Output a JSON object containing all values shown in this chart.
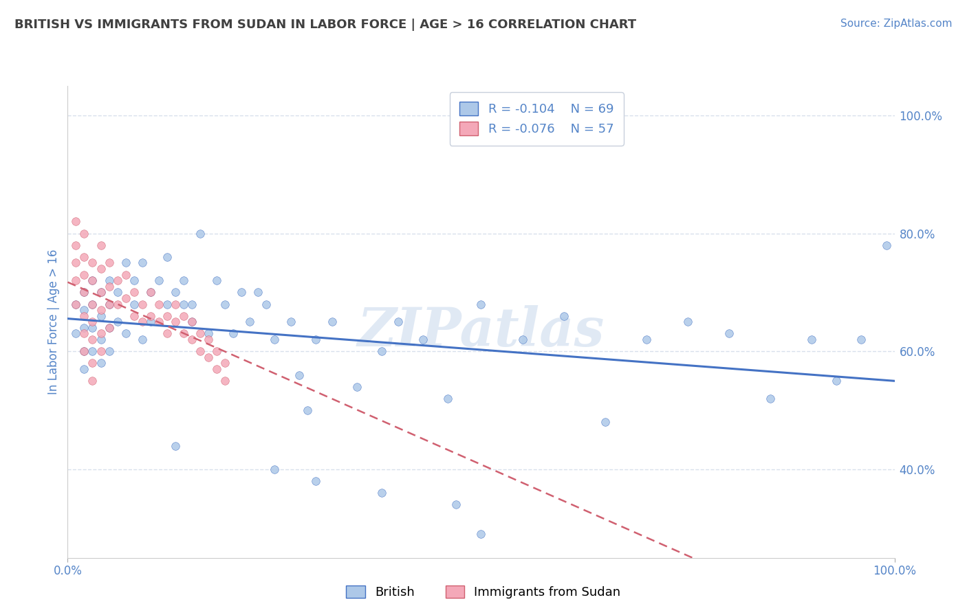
{
  "title": "BRITISH VS IMMIGRANTS FROM SUDAN IN LABOR FORCE | AGE > 16 CORRELATION CHART",
  "source_text": "Source: ZipAtlas.com",
  "ylabel": "In Labor Force | Age > 16",
  "watermark": "ZIPatlas",
  "legend_R1": "R = -0.104",
  "legend_N1": "N = 69",
  "legend_R2": "R = -0.076",
  "legend_N2": "N = 57",
  "bottom_label1": "British",
  "bottom_label2": "Immigrants from Sudan",
  "british_color": "#adc8e8",
  "sudan_color": "#f4a8b8",
  "british_line_color": "#4472c4",
  "sudan_line_color": "#d06070",
  "axis_color": "#5585c8",
  "title_color": "#404040",
  "watermark_color": "#c8d8ec",
  "grid_color": "#d8e0ec",
  "xlim": [
    0.0,
    1.0
  ],
  "ylim_min": 0.25,
  "ylim_max": 1.05,
  "yticks": [
    0.4,
    0.6,
    0.8,
    1.0
  ],
  "ytick_labels": [
    "40.0%",
    "60.0%",
    "80.0%",
    "100.0%"
  ],
  "british_x": [
    0.01,
    0.01,
    0.02,
    0.02,
    0.02,
    0.02,
    0.02,
    0.03,
    0.03,
    0.03,
    0.03,
    0.04,
    0.04,
    0.04,
    0.04,
    0.05,
    0.05,
    0.05,
    0.05,
    0.06,
    0.06,
    0.07,
    0.07,
    0.08,
    0.08,
    0.09,
    0.09,
    0.1,
    0.1,
    0.11,
    0.12,
    0.12,
    0.13,
    0.14,
    0.14,
    0.15,
    0.15,
    0.16,
    0.17,
    0.18,
    0.19,
    0.2,
    0.21,
    0.22,
    0.23,
    0.24,
    0.25,
    0.27,
    0.28,
    0.29,
    0.3,
    0.32,
    0.35,
    0.38,
    0.4,
    0.43,
    0.46,
    0.5,
    0.55,
    0.6,
    0.65,
    0.7,
    0.75,
    0.8,
    0.85,
    0.9,
    0.93,
    0.96,
    0.99
  ],
  "british_y": [
    0.68,
    0.63,
    0.7,
    0.67,
    0.64,
    0.6,
    0.57,
    0.72,
    0.68,
    0.64,
    0.6,
    0.7,
    0.66,
    0.62,
    0.58,
    0.72,
    0.68,
    0.64,
    0.6,
    0.7,
    0.65,
    0.75,
    0.63,
    0.72,
    0.68,
    0.75,
    0.62,
    0.7,
    0.65,
    0.72,
    0.68,
    0.76,
    0.7,
    0.72,
    0.68,
    0.65,
    0.68,
    0.8,
    0.63,
    0.72,
    0.68,
    0.63,
    0.7,
    0.65,
    0.7,
    0.68,
    0.62,
    0.65,
    0.56,
    0.5,
    0.62,
    0.65,
    0.54,
    0.6,
    0.65,
    0.62,
    0.52,
    0.68,
    0.62,
    0.66,
    0.48,
    0.62,
    0.65,
    0.63,
    0.52,
    0.62,
    0.55,
    0.62,
    0.78
  ],
  "british_y_outliers_x": [
    0.13,
    0.25,
    0.3,
    0.38,
    0.47,
    0.5
  ],
  "british_y_outliers_y": [
    0.44,
    0.4,
    0.38,
    0.36,
    0.34,
    0.29
  ],
  "sudan_x": [
    0.01,
    0.01,
    0.01,
    0.01,
    0.01,
    0.02,
    0.02,
    0.02,
    0.02,
    0.02,
    0.02,
    0.02,
    0.03,
    0.03,
    0.03,
    0.03,
    0.03,
    0.03,
    0.03,
    0.04,
    0.04,
    0.04,
    0.04,
    0.04,
    0.04,
    0.05,
    0.05,
    0.05,
    0.05,
    0.06,
    0.06,
    0.07,
    0.07,
    0.08,
    0.08,
    0.09,
    0.09,
    0.1,
    0.1,
    0.11,
    0.11,
    0.12,
    0.12,
    0.13,
    0.13,
    0.14,
    0.14,
    0.15,
    0.15,
    0.16,
    0.16,
    0.17,
    0.17,
    0.18,
    0.18,
    0.19,
    0.19
  ],
  "sudan_y": [
    0.82,
    0.78,
    0.75,
    0.72,
    0.68,
    0.8,
    0.76,
    0.73,
    0.7,
    0.66,
    0.63,
    0.6,
    0.75,
    0.72,
    0.68,
    0.65,
    0.62,
    0.58,
    0.55,
    0.78,
    0.74,
    0.7,
    0.67,
    0.63,
    0.6,
    0.75,
    0.71,
    0.68,
    0.64,
    0.72,
    0.68,
    0.73,
    0.69,
    0.7,
    0.66,
    0.68,
    0.65,
    0.7,
    0.66,
    0.68,
    0.65,
    0.66,
    0.63,
    0.68,
    0.65,
    0.66,
    0.63,
    0.65,
    0.62,
    0.63,
    0.6,
    0.62,
    0.59,
    0.6,
    0.57,
    0.58,
    0.55
  ]
}
